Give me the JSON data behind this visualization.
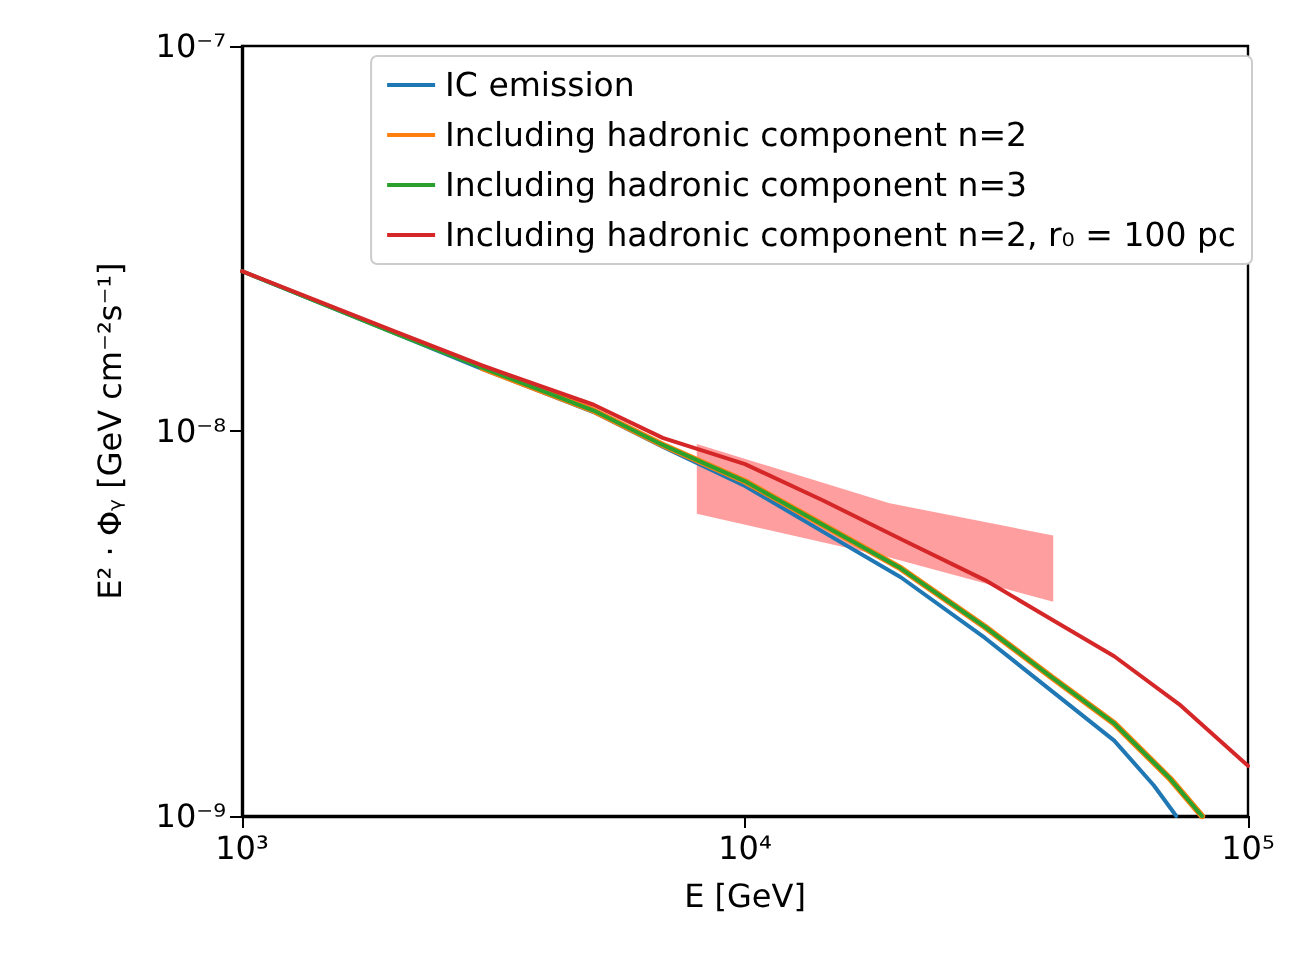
{
  "chart_data": {
    "type": "line",
    "xlabel": "E [GeV]",
    "ylabel": "E² · Φᵧ [GeV cm⁻²s⁻¹]",
    "log": "xy",
    "grid": false,
    "legend": "top right",
    "marker": "none",
    "line_style": "solid",
    "xlim": [
      1000,
      100000
    ],
    "xticks": [
      {
        "value": 1000,
        "label": "10³"
      },
      {
        "value": 10000,
        "label": "10⁴"
      },
      {
        "value": 100000,
        "label": "10⁵"
      }
    ],
    "ylim": [
      1e-09,
      1e-07
    ],
    "yticks": [
      {
        "value": 1e-09,
        "label": "10⁻⁹"
      },
      {
        "value": 1e-08,
        "label": "10⁻⁸"
      },
      {
        "value": 1e-07,
        "label": "10⁻⁷"
      }
    ],
    "series": [
      {
        "name": "IC emission",
        "color": "#1f77b4",
        "x": [
          1000,
          2000,
          3000,
          5000,
          6860,
          10000,
          14300,
          20400,
          30000,
          40400,
          54200,
          65000,
          72000
        ],
        "values": [
          2.6e-08,
          1.8e-08,
          1.45e-08,
          1.12e-08,
          9.1e-09,
          7.2e-09,
          5.47e-09,
          4.17e-09,
          2.9e-09,
          2.13e-09,
          1.57e-09,
          1.2e-09,
          1e-09
        ]
      },
      {
        "name": "Including hadronic component n=2",
        "color": "#ff7f0e",
        "x": [
          3000,
          5000,
          6860,
          10000,
          14300,
          20400,
          30000,
          40400,
          54200,
          70000,
          81000
        ],
        "values": [
          1.46e-08,
          1.13e-08,
          9.2e-09,
          7.4e-09,
          5.7e-09,
          4.4e-09,
          3.1e-09,
          2.31e-09,
          1.74e-09,
          1.25e-09,
          1e-09
        ]
      },
      {
        "name": "Including hadronic component n=3",
        "color": "#2ca02c",
        "x": [
          1000,
          2000,
          3000,
          5000,
          6860,
          10000,
          14300,
          20400,
          30000,
          40400,
          54200,
          70000,
          81000
        ],
        "values": [
          2.6e-08,
          1.8e-08,
          1.46e-08,
          1.13e-08,
          9.2e-09,
          7.4e-09,
          5.7e-09,
          4.4e-09,
          3.1e-09,
          2.31e-09,
          1.74e-09,
          1.25e-09,
          1e-09
        ]
      },
      {
        "name": "Including hadronic component n=2, r₀ = 100 pc",
        "color": "#d62728",
        "x": [
          1000,
          2000,
          3000,
          5000,
          6860,
          10000,
          14300,
          20400,
          30000,
          40400,
          54200,
          73000,
          100000
        ],
        "values": [
          2.6e-08,
          1.82e-08,
          1.48e-08,
          1.17e-08,
          9.6e-09,
          8.2e-09,
          6.6e-09,
          5.24e-09,
          4.1e-09,
          3.26e-09,
          2.6e-09,
          1.95e-09,
          1.35e-09
        ]
      },
      {
        "type": "area",
        "color": "#ff9999",
        "x": [
          8020,
          19300,
          41000
        ],
        "values": [
          null,
          null,
          null
        ],
        "lower": [
          6.1e-09,
          4.7e-09,
          3.6e-09
        ],
        "upper": [
          9.25e-09,
          6.5e-09,
          5.35e-09
        ]
      }
    ]
  }
}
